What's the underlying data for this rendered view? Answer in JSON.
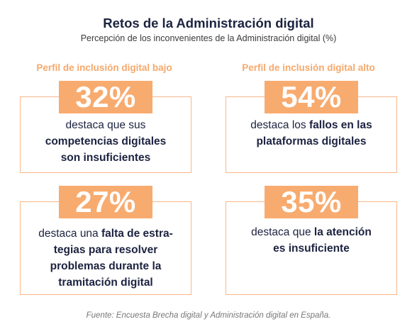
{
  "header": {
    "title": "Retos de la Administración digital",
    "subtitle": "Percepción de los inconvenientes de la Administración digital (%)"
  },
  "columns": {
    "low": "Perfil de inclusión digital bajo",
    "high": "Perfil de inclusión digital alto"
  },
  "cards": [
    {
      "percent": "32%",
      "text_a": "destaca que sus",
      "bold_a": "competencias digitales",
      "bold_b": "son insuficientes"
    },
    {
      "percent": "54%",
      "text_a": "destaca los ",
      "bold_a": "fallos en las",
      "bold_b": "plataformas digitales"
    },
    {
      "percent": "27%",
      "text_a": "destaca una ",
      "bold_a": "falta de estra-",
      "bold_b": "tegias para resolver",
      "bold_c": "problemas durante la",
      "bold_d": "tramitación digital"
    },
    {
      "percent": "35%",
      "text_a": "destaca que ",
      "bold_a": "la atención",
      "bold_b": "es insuficiente"
    }
  ],
  "footer": {
    "source": "Fuente: Encuesta Brecha digital y Administración digital en España."
  },
  "colors": {
    "accent": "#f8ab6f",
    "border": "#f7b78a",
    "text": "#1c2340"
  }
}
